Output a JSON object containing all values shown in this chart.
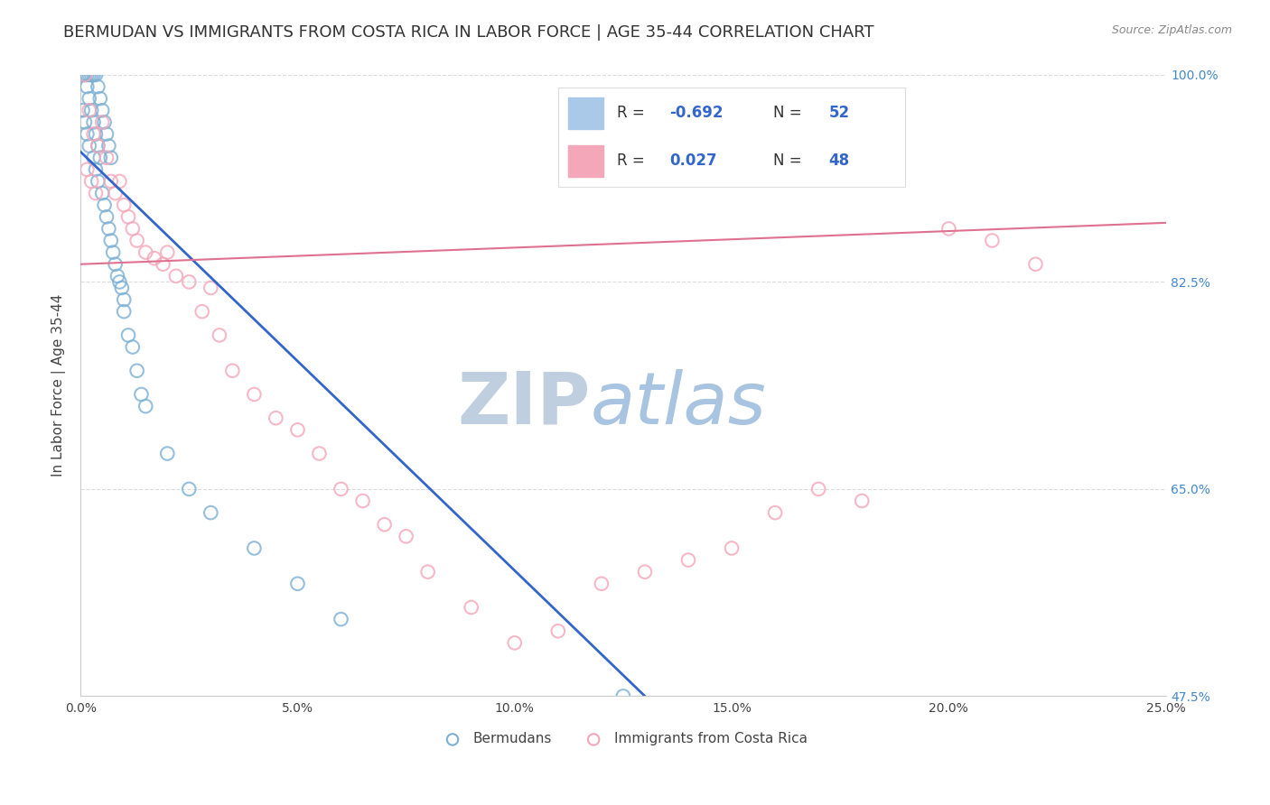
{
  "title": "BERMUDAN VS IMMIGRANTS FROM COSTA RICA IN LABOR FORCE | AGE 35-44 CORRELATION CHART",
  "source_text": "Source: ZipAtlas.com",
  "ylabel": "In Labor Force | Age 35-44",
  "xlabel_ticks": [
    "0.0%",
    "5.0%",
    "10.0%",
    "15.0%",
    "20.0%",
    "25.0%"
  ],
  "xlabel_vals": [
    0.0,
    5.0,
    10.0,
    15.0,
    20.0,
    25.0
  ],
  "ylabel_ticks": [
    "47.5%",
    "65.0%",
    "82.5%",
    "100.0%"
  ],
  "ylabel_vals": [
    47.5,
    65.0,
    82.5,
    100.0
  ],
  "xlim": [
    0.0,
    25.0
  ],
  "ylim": [
    47.5,
    100.0
  ],
  "blue_R": -0.692,
  "blue_N": 52,
  "pink_R": 0.027,
  "pink_N": 48,
  "blue_color": "#7bafd4",
  "pink_color": "#f4a7b9",
  "blue_line_color": "#3366cc",
  "pink_line_color": "#e07090",
  "watermark_zip": "ZIP",
  "watermark_atlas": "atlas",
  "watermark_color": "#c8d8ee",
  "title_fontsize": 13,
  "axis_label_fontsize": 11,
  "tick_fontsize": 10,
  "legend_fontsize": 12,
  "blue_scatter_x": [
    0.05,
    0.05,
    0.1,
    0.1,
    0.15,
    0.15,
    0.15,
    0.2,
    0.2,
    0.2,
    0.25,
    0.25,
    0.3,
    0.3,
    0.3,
    0.35,
    0.35,
    0.35,
    0.4,
    0.4,
    0.4,
    0.45,
    0.45,
    0.5,
    0.5,
    0.55,
    0.55,
    0.6,
    0.6,
    0.65,
    0.65,
    0.7,
    0.7,
    0.75,
    0.8,
    0.85,
    0.9,
    0.95,
    1.0,
    1.0,
    1.1,
    1.2,
    1.3,
    1.4,
    1.5,
    2.0,
    2.5,
    3.0,
    4.0,
    5.0,
    6.0,
    12.5
  ],
  "blue_scatter_y": [
    100.0,
    97.0,
    100.0,
    96.0,
    100.0,
    99.0,
    95.0,
    100.0,
    98.0,
    94.0,
    100.0,
    97.0,
    100.0,
    96.0,
    93.0,
    100.0,
    95.0,
    92.0,
    99.0,
    94.0,
    91.0,
    98.0,
    93.0,
    97.0,
    90.0,
    96.0,
    89.0,
    95.0,
    88.0,
    94.0,
    87.0,
    93.0,
    86.0,
    85.0,
    84.0,
    83.0,
    82.5,
    82.0,
    81.0,
    80.0,
    78.0,
    77.0,
    75.0,
    73.0,
    72.0,
    68.0,
    65.0,
    63.0,
    60.0,
    57.0,
    54.0,
    47.5
  ],
  "pink_scatter_x": [
    0.1,
    0.2,
    0.3,
    0.4,
    0.5,
    0.6,
    0.7,
    0.8,
    0.9,
    1.0,
    1.1,
    1.2,
    1.3,
    1.5,
    1.7,
    1.9,
    2.0,
    2.2,
    2.5,
    2.8,
    3.0,
    3.2,
    3.5,
    4.0,
    4.5,
    5.0,
    5.5,
    6.0,
    6.5,
    7.0,
    7.5,
    8.0,
    9.0,
    10.0,
    11.0,
    12.0,
    13.0,
    14.0,
    15.0,
    16.0,
    17.0,
    18.0,
    20.0,
    21.0,
    22.0,
    0.15,
    0.25,
    0.35
  ],
  "pink_scatter_y": [
    100.0,
    97.0,
    95.0,
    94.0,
    96.0,
    93.0,
    91.0,
    90.0,
    91.0,
    89.0,
    88.0,
    87.0,
    86.0,
    85.0,
    84.5,
    84.0,
    85.0,
    83.0,
    82.5,
    80.0,
    82.0,
    78.0,
    75.0,
    73.0,
    71.0,
    70.0,
    68.0,
    65.0,
    64.0,
    62.0,
    61.0,
    58.0,
    55.0,
    52.0,
    53.0,
    57.0,
    58.0,
    59.0,
    60.0,
    63.0,
    65.0,
    64.0,
    87.0,
    86.0,
    84.0,
    92.0,
    91.0,
    90.0
  ],
  "blue_line_x0": 0.0,
  "blue_line_y0": 93.5,
  "blue_line_x1": 13.0,
  "blue_line_y1": 47.5,
  "pink_line_x0": 0.0,
  "pink_line_y0": 84.0,
  "pink_line_x1": 25.0,
  "pink_line_y1": 87.5,
  "background_color": "#ffffff",
  "grid_color": "#cccccc"
}
